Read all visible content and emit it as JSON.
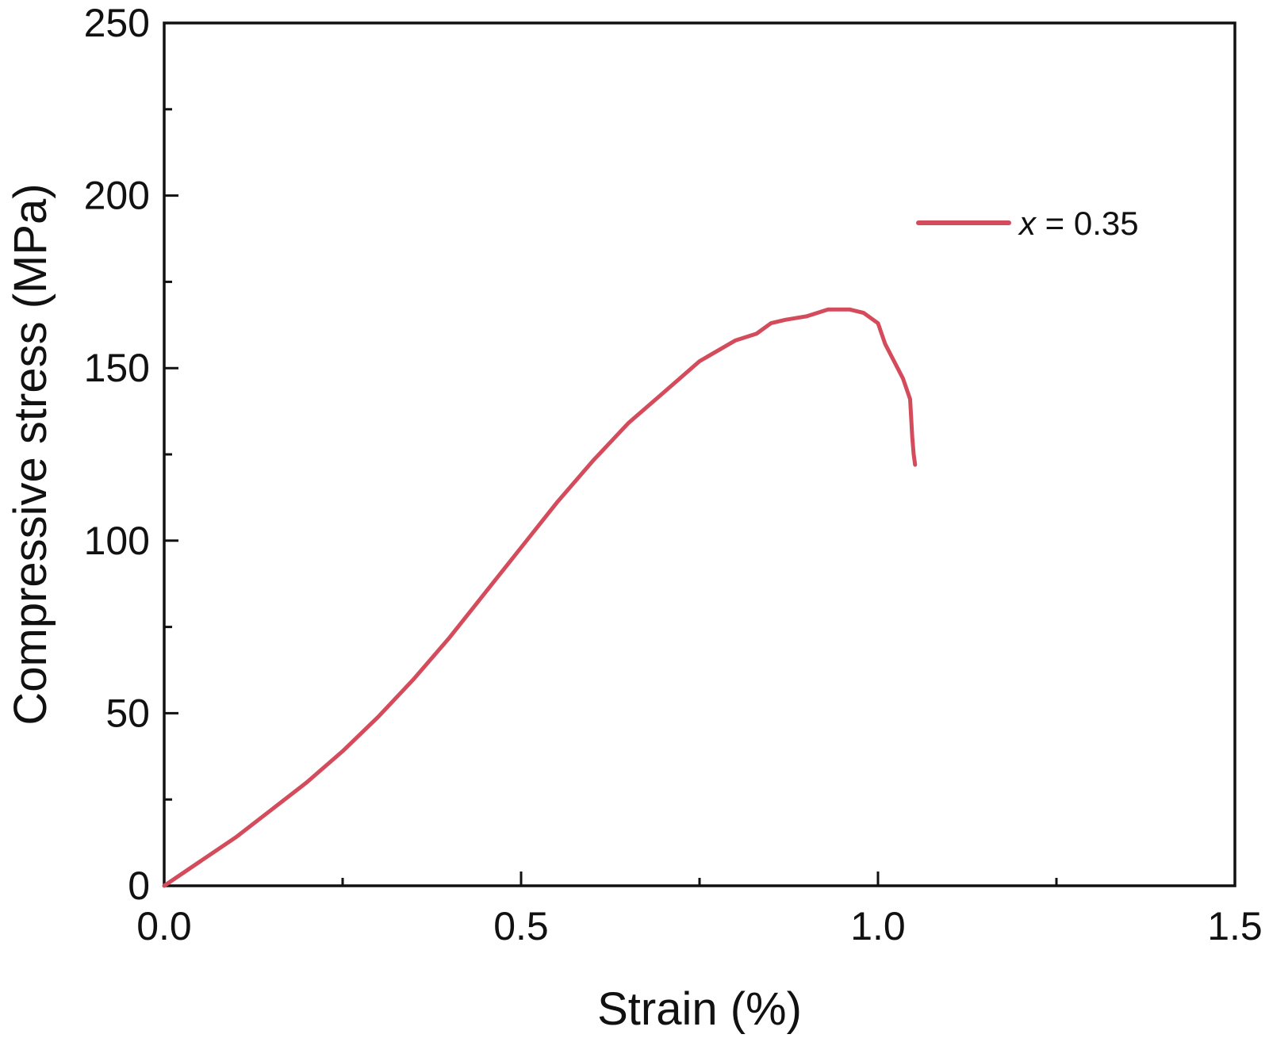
{
  "chart_data": {
    "type": "line",
    "title": "",
    "xlabel": "Strain (%)",
    "ylabel": "Compressive stress (MPa)",
    "xlim": [
      0.0,
      1.5
    ],
    "ylim": [
      0,
      250
    ],
    "grid": false,
    "x_ticks": [
      {
        "value": 0.0,
        "label": "0.0"
      },
      {
        "value": 0.5,
        "label": "0.5"
      },
      {
        "value": 1.0,
        "label": "1.0"
      },
      {
        "value": 1.5,
        "label": "1.5"
      }
    ],
    "x_minor_ticks": [
      0.25,
      0.75,
      1.25
    ],
    "y_ticks": [
      {
        "value": 0,
        "label": "0"
      },
      {
        "value": 50,
        "label": "50"
      },
      {
        "value": 100,
        "label": "100"
      },
      {
        "value": 150,
        "label": "150"
      },
      {
        "value": 200,
        "label": "200"
      },
      {
        "value": 250,
        "label": "250"
      }
    ],
    "y_minor_ticks": [
      25,
      75,
      125,
      175,
      225
    ],
    "legend_position": "top-right",
    "series": [
      {
        "name": "x = 0.35",
        "name_variable": "x",
        "name_value": " = 0.35",
        "color": "#d44c5c",
        "x": [
          0.0,
          0.05,
          0.1,
          0.15,
          0.2,
          0.25,
          0.3,
          0.35,
          0.4,
          0.45,
          0.5,
          0.55,
          0.6,
          0.65,
          0.7,
          0.75,
          0.8,
          0.83,
          0.85,
          0.87,
          0.9,
          0.93,
          0.96,
          0.98,
          1.0,
          1.01,
          1.02,
          1.035,
          1.045,
          1.048,
          1.05,
          1.052
        ],
        "y": [
          0,
          7,
          14,
          22,
          30,
          39,
          49,
          60,
          72,
          85,
          98,
          111,
          123,
          134,
          143,
          152,
          158,
          160,
          163,
          164,
          165,
          167,
          167,
          166,
          163,
          157,
          153,
          147,
          141,
          130,
          125,
          122
        ]
      }
    ]
  }
}
